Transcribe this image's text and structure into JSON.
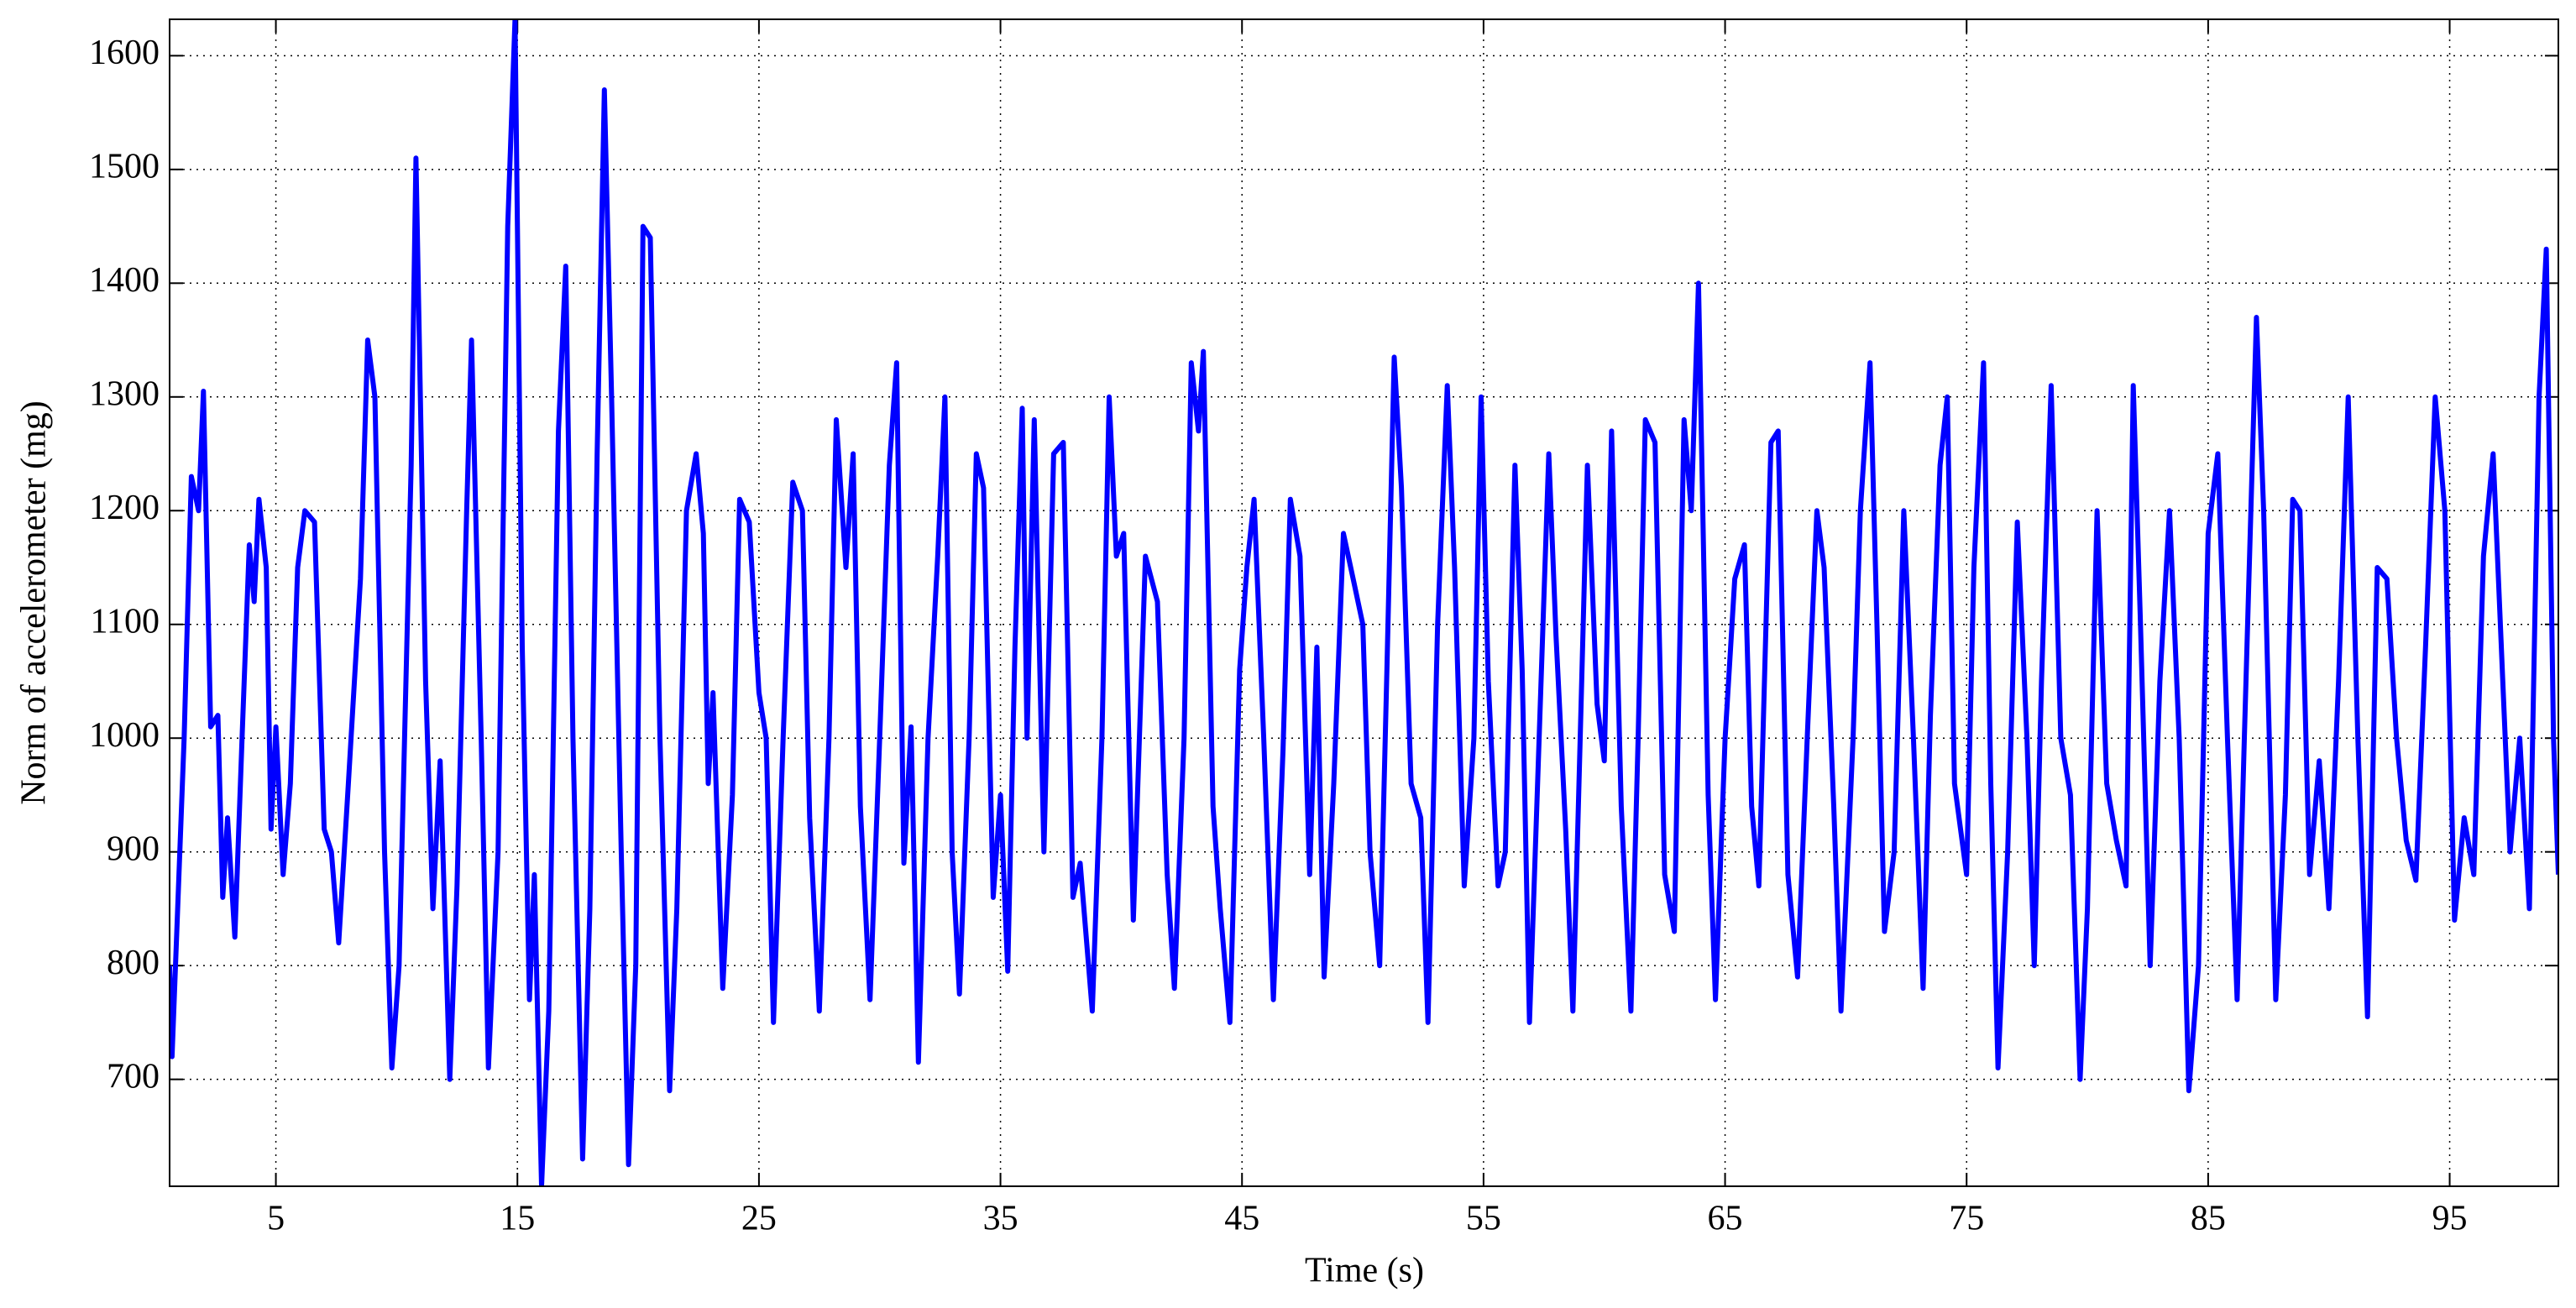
{
  "chart_data": {
    "type": "line",
    "xlabel": "Time (s)",
    "ylabel": "Norm of accelerometer (mg)",
    "color": "#0000ff",
    "grid": true,
    "xlim": [
      0.6,
      99.5
    ],
    "xticks": [
      5,
      15,
      25,
      35,
      45,
      55,
      65,
      75,
      85,
      95
    ],
    "ylim": [
      606,
      1632
    ],
    "yticks": [
      700,
      800,
      900,
      1000,
      1100,
      1200,
      1300,
      1400,
      1500,
      1600
    ],
    "x": [
      0.6,
      0.7,
      1.2,
      1.5,
      1.8,
      2.0,
      2.3,
      2.6,
      2.8,
      3.0,
      3.3,
      3.6,
      3.9,
      4.1,
      4.3,
      4.6,
      4.8,
      5.0,
      5.3,
      5.6,
      5.9,
      6.2,
      6.6,
      7.0,
      7.3,
      7.6,
      8.0,
      8.5,
      8.8,
      9.1,
      9.5,
      9.8,
      10.1,
      10.6,
      10.8,
      11.2,
      11.5,
      11.8,
      12.2,
      12.5,
      12.9,
      13.1,
      13.5,
      13.8,
      14.2,
      14.6,
      14.9,
      15.2,
      15.5,
      15.7,
      16.0,
      16.3,
      16.7,
      17.0,
      17.3,
      17.7,
      18.0,
      18.3,
      18.6,
      18.9,
      19.3,
      19.6,
      19.9,
      20.2,
      20.5,
      20.9,
      21.3,
      21.6,
      22.0,
      22.4,
      22.7,
      22.9,
      23.1,
      23.5,
      23.9,
      24.2,
      24.6,
      25.0,
      25.3,
      25.6,
      26.0,
      26.4,
      26.8,
      27.1,
      27.5,
      27.9,
      28.2,
      28.6,
      28.9,
      29.2,
      29.6,
      30.0,
      30.4,
      30.7,
      31.0,
      31.3,
      31.6,
      32.0,
      32.4,
      32.7,
      33.0,
      33.3,
      33.7,
      34.0,
      34.3,
      34.7,
      35.0,
      35.3,
      35.6,
      35.9,
      36.1,
      36.4,
      36.8,
      37.2,
      37.6,
      38.0,
      38.3,
      38.8,
      39.2,
      39.5,
      39.8,
      40.1,
      40.5,
      41.0,
      41.5,
      41.9,
      42.2,
      42.6,
      42.9,
      43.2,
      43.4,
      43.8,
      44.1,
      44.5,
      44.9,
      45.2,
      45.5,
      45.9,
      46.3,
      46.7,
      47.0,
      47.4,
      47.8,
      48.1,
      48.4,
      48.8,
      49.2,
      49.6,
      50.0,
      50.3,
      50.7,
      51.0,
      51.3,
      51.6,
      52.0,
      52.4,
      52.7,
      53.1,
      53.5,
      53.8,
      54.2,
      54.6,
      54.9,
      55.2,
      55.6,
      55.9,
      56.3,
      56.6,
      56.9,
      57.3,
      57.7,
      58.0,
      58.4,
      58.7,
      59.0,
      59.3,
      59.7,
      60.0,
      60.3,
      60.7,
      61.1,
      61.4,
      61.7,
      62.1,
      62.5,
      62.9,
      63.3,
      63.6,
      63.9,
      64.3,
      64.6,
      65.0,
      65.4,
      65.8,
      66.1,
      66.4,
      66.9,
      67.2,
      67.6,
      68.0,
      68.4,
      68.8,
      69.1,
      69.5,
      69.8,
      70.3,
      70.6,
      71.0,
      71.3,
      71.6,
      72.0,
      72.4,
      72.8,
      73.2,
      73.5,
      73.9,
      74.2,
      74.5,
      75.0,
      75.3,
      75.7,
      76.0,
      76.3,
      76.7,
      77.1,
      77.5,
      77.8,
      78.1,
      78.5,
      78.9,
      79.3,
      79.7,
      80.0,
      80.4,
      80.8,
      81.2,
      81.6,
      81.9,
      82.2,
      82.6,
      83.0,
      83.4,
      83.8,
      84.2,
      84.6,
      85.0,
      85.4,
      85.8,
      86.2,
      86.5,
      87.0,
      87.3,
      87.8,
      88.2,
      88.5,
      88.8,
      89.2,
      89.6,
      90.0,
      90.4,
      90.8,
      91.2,
      91.6,
      92.0,
      92.4,
      92.8,
      93.2,
      93.6,
      94.0,
      94.4,
      94.8,
      95.2,
      95.6,
      96.0,
      96.4,
      96.8,
      97.2,
      97.5,
      97.9,
      98.3,
      98.7,
      99.0,
      99.3,
      99.5
    ],
    "values": [
      800,
      720,
      1000,
      1230,
      1200,
      1305,
      1010,
      1020,
      860,
      930,
      825,
      1000,
      1170,
      1120,
      1210,
      1150,
      920,
      1010,
      880,
      960,
      1150,
      1200,
      1190,
      920,
      900,
      820,
      960,
      1140,
      1350,
      1300,
      900,
      710,
      800,
      1240,
      1510,
      1050,
      850,
      980,
      700,
      870,
      1200,
      1350,
      1000,
      710,
      900,
      1450,
      1632,
      1080,
      770,
      880,
      606,
      760,
      1270,
      1415,
      1000,
      630,
      850,
      1250,
      1570,
      1300,
      900,
      625,
      800,
      1450,
      1440,
      1000,
      690,
      850,
      1200,
      1250,
      1180,
      960,
      1040,
      780,
      950,
      1210,
      1190,
      1040,
      1000,
      750,
      1000,
      1225,
      1200,
      930,
      760,
      1000,
      1280,
      1150,
      1250,
      940,
      770,
      1000,
      1240,
      1330,
      890,
      1010,
      715,
      1000,
      1160,
      1300,
      900,
      775,
      1000,
      1250,
      1220,
      860,
      950,
      795,
      1080,
      1290,
      1000,
      1280,
      900,
      1250,
      1260,
      860,
      890,
      760,
      1000,
      1300,
      1160,
      1180,
      840,
      1160,
      1120,
      880,
      780,
      1000,
      1330,
      1270,
      1340,
      940,
      850,
      750,
      1060,
      1150,
      1210,
      1000,
      770,
      990,
      1210,
      1160,
      880,
      1080,
      790,
      960,
      1180,
      1140,
      1100,
      900,
      800,
      1060,
      1335,
      1220,
      960,
      930,
      750,
      1100,
      1310,
      1150,
      870,
      1000,
      1300,
      1050,
      870,
      900,
      1240,
      1060,
      750,
      1000,
      1250,
      1090,
      920,
      760,
      1000,
      1240,
      1030,
      980,
      1270,
      940,
      760,
      1000,
      1280,
      1260,
      880,
      830,
      1280,
      1200,
      1400,
      950,
      770,
      1000,
      1140,
      1170,
      940,
      870,
      1260,
      1270,
      880,
      790,
      1000,
      1200,
      1150,
      940,
      760,
      1000,
      1200,
      1330,
      1090,
      830,
      900,
      1200,
      1000,
      780,
      1020,
      1240,
      1300,
      960,
      880,
      1150,
      1330,
      960,
      710,
      900,
      1190,
      1000,
      800,
      1050,
      1310,
      1000,
      950,
      700,
      850,
      1200,
      960,
      910,
      870,
      1310,
      1100,
      800,
      1050,
      1200,
      1000,
      690,
      800,
      1180,
      1250,
      1000,
      770,
      1000,
      1370,
      1200,
      770,
      950,
      1210,
      1200,
      880,
      980,
      850,
      1050,
      1300,
      1000,
      755,
      1150,
      1140,
      1000,
      910,
      875,
      1080,
      1300,
      1200,
      840,
      930,
      880,
      1160,
      1250,
      1050,
      900,
      1000,
      850,
      1300,
      1430,
      1000,
      880
    ]
  }
}
